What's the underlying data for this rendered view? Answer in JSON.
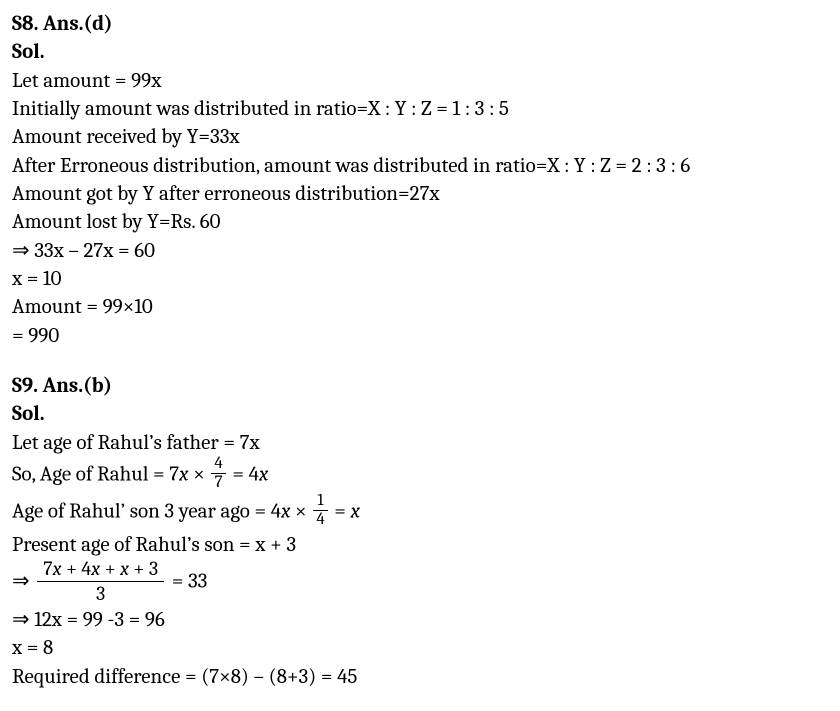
{
  "s8": {
    "heading": "S8. Ans.(d)",
    "sol_label": "Sol.",
    "l1": "Let amount = 99x",
    "l2": "Initially amount was distributed in ratio=X  :  Y  :  Z = 1  :  3  :  5",
    "l3": "Amount received by Y=33x",
    "l4": "After Erroneous distribution, amount was distributed in ratio=X  :  Y  : Z = 2 : 3 : 6",
    "l5": "Amount got by Y after erroneous distribution=27x",
    "l6": "Amount lost by Y=Rs. 60",
    "l7": "⇒ 33x – 27x = 60",
    "l8": "x = 10",
    "l9": "Amount = 99×10",
    "l10": "= 990"
  },
  "s9": {
    "heading": "S9. Ans.(b)",
    "sol_label": "Sol.",
    "l1": "Let age of Rahul’s father = 7x",
    "l2a": "So, Age of Rahul ",
    "l2b": "= 7",
    "l2c": " × ",
    "frac1_num": "4",
    "frac1_den": "7",
    "l2d": " = 4",
    "l3a": "Age of Rahul’ son 3 year ago ",
    "l3b": "= 4",
    "l3c": " × ",
    "frac2_num": "1",
    "frac2_den": "4",
    "l3d": " = ",
    "l4": "Present age of Rahul’s son = x + 3",
    "l5a": "⇒ ",
    "frac3_num_a": "7",
    "frac3_num_b": " + 4",
    "frac3_num_c": " + ",
    "frac3_num_d": " + 3",
    "frac3_den": "3",
    "l5b": " = 33",
    "l6": "⇒ 12x = 99 -3 = 96",
    "l7": "x = 8",
    "l8": "Required difference = (7×8) – (8+3) = 45"
  }
}
